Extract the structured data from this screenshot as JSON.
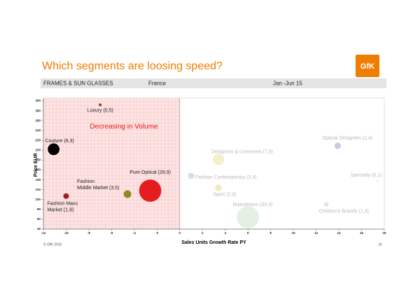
{
  "header": {
    "title": "Which segments are loosing speed?",
    "logo": "GfK",
    "category": "FRAMES & SUN GLASSES",
    "country": "France",
    "period": "Jan -Jun 15"
  },
  "chart_data": {
    "type": "bubble",
    "x_label": "Sales Units Growth Rate PY",
    "y_label": "Price EUR",
    "annotation": "Decreasing in Volume",
    "xlim": [
      -12,
      18
    ],
    "xticks": [
      -12,
      -10,
      -8,
      -6,
      -4,
      -2,
      0,
      2,
      4,
      6,
      8,
      10,
      12,
      14,
      16,
      18
    ],
    "ylim": [
      40,
      300
    ],
    "yticks": [
      40,
      60,
      80,
      100,
      120,
      140,
      160,
      180,
      200,
      220,
      240,
      260,
      280,
      300
    ],
    "points": [
      {
        "label": [
          "Luxury (0,5)"
        ],
        "x": -7.0,
        "y": 292,
        "size": 0.5,
        "color": "#7a4545"
      },
      {
        "label": [
          "Couture (8,3)"
        ],
        "x": -11.1,
        "y": 202,
        "size": 8.3,
        "color": "#000000"
      },
      {
        "label": [
          "Fashion Mass",
          "Market (1,9)"
        ],
        "x": -10.0,
        "y": 107,
        "size": 1.9,
        "color": "#a01e28"
      },
      {
        "label": [
          "Fashion",
          "Middle Market (3,5)"
        ],
        "x": -4.6,
        "y": 111,
        "size": 3.5,
        "color": "#8a8a1e"
      },
      {
        "label": [
          "Pure Optical (29,9)"
        ],
        "x": -2.6,
        "y": 118,
        "size": 29.9,
        "color": "#e41e1e"
      },
      {
        "label": [
          "Optical Designers (2,4)"
        ],
        "x": 13.9,
        "y": 209,
        "size": 2.4,
        "color": "#c8c8e0"
      },
      {
        "label": [
          "Designers & Licensees (7,8)"
        ],
        "x": 3.4,
        "y": 181,
        "size": 7.8,
        "color": "#f4f0c8"
      },
      {
        "label": [
          "Fashion Contemporary (2,4)"
        ],
        "x": 1.0,
        "y": 148,
        "size": 2.4,
        "color": "#cde0f0"
      },
      {
        "label": [
          "Sport (2,9)"
        ],
        "x": 3.4,
        "y": 124,
        "size": 2.9,
        "color": "#f0ecc0"
      },
      {
        "label": [
          "Specialty (0,1)"
        ],
        "x": 17.4,
        "y": 138,
        "size": 0.1,
        "color": "#f0f0b0"
      },
      {
        "label": [
          "Mainstream (30,0)"
        ],
        "x": 6.0,
        "y": 64,
        "size": 30.0,
        "color": "#e4f0e4"
      },
      {
        "label": [
          "Children's Brands (1,3)"
        ],
        "x": 12.9,
        "y": 90,
        "size": 1.3,
        "color": "#d8ecd8"
      }
    ]
  },
  "footer": {
    "copyright": "© GfK 2015",
    "page": "16"
  }
}
